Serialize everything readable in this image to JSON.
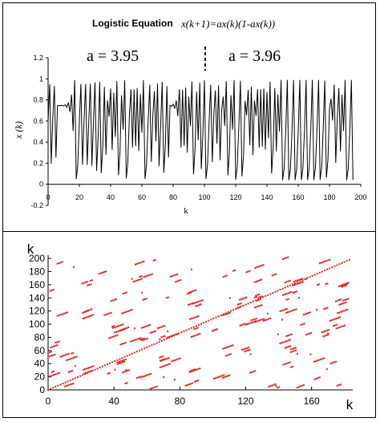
{
  "top_chart": {
    "title_prefix": "Logistic Equation",
    "title_equation": "x(k+1)=ax(k)(1-ax(k))",
    "annotation_left": "a  = 3.95",
    "annotation_right": "a  = 3.96",
    "xlabel": "k",
    "ylabel": "x (k)"
  },
  "bottom_chart": {
    "xlabel": "k",
    "ylabel": "k"
  },
  "chart_data": [
    {
      "type": "line",
      "title": "Logistic Equation x(k+1)=ax(k)(1-ax(k))",
      "xlabel": "k",
      "ylabel": "x (k)",
      "xlim": [
        0,
        200
      ],
      "ylim": [
        -0.2,
        1.2
      ],
      "xticks": [
        0,
        20,
        40,
        60,
        80,
        100,
        120,
        140,
        160,
        180,
        200
      ],
      "yticks": [
        -0.2,
        0,
        0.2,
        0.4,
        0.6,
        0.8,
        1,
        1.2
      ],
      "annotations": [
        "a  = 3.95",
        "a  = 3.96"
      ],
      "divider_k": 100,
      "param_left": 3.95,
      "param_right": 3.96,
      "x0": 0.6,
      "k_range": [
        0,
        195
      ],
      "line_color": "#000000",
      "grid": false
    },
    {
      "type": "scatter",
      "xlabel": "k",
      "ylabel": "k",
      "xlim": [
        0,
        185
      ],
      "ylim": [
        0,
        205
      ],
      "xticks": [
        0,
        40,
        80,
        120,
        160
      ],
      "yticks": [
        0,
        20,
        40,
        60,
        80,
        100,
        120,
        140,
        160,
        180,
        200
      ],
      "marker_color": "#e8201e",
      "diagonal": true,
      "grid": false
    }
  ]
}
